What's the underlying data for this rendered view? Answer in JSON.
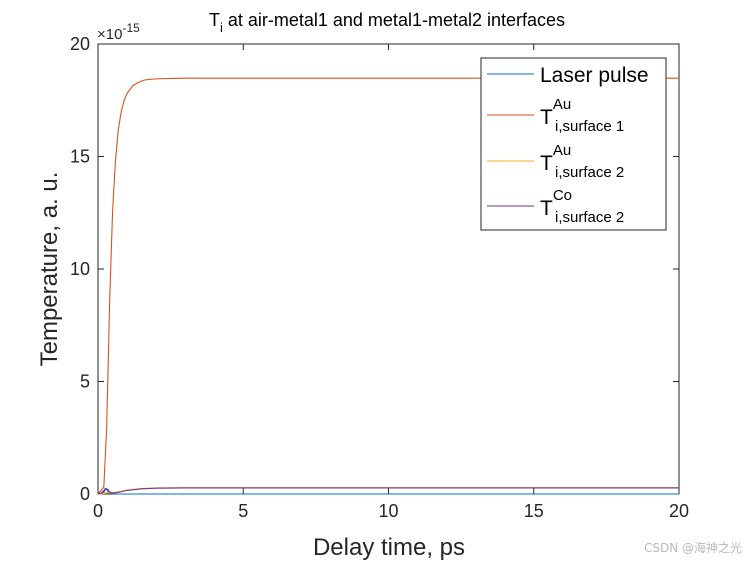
{
  "chart_data": {
    "type": "line",
    "title_main": "T",
    "title_sub": "i",
    "title_rest": " at air-metal1 and metal1-metal2 interfaces",
    "xlabel": "Delay time, ps",
    "ylabel": "Temperature, a. u.",
    "y_multiplier_base": "×10",
    "y_multiplier_exp": "-15",
    "xlim": [
      0,
      20
    ],
    "ylim": [
      0,
      20
    ],
    "xticks": [
      0,
      5,
      10,
      15,
      20
    ],
    "yticks": [
      0,
      5,
      10,
      15,
      20
    ],
    "grid": false,
    "legend_position": "top-right",
    "series": [
      {
        "name": "Laser pulse",
        "color": "#0072bd",
        "x": [
          0,
          0.1,
          0.2,
          0.25,
          0.3,
          0.35,
          0.4,
          0.5,
          0.6,
          20
        ],
        "y": [
          0,
          0.03,
          0.15,
          0.25,
          0.2,
          0.1,
          0.04,
          0.01,
          0,
          0
        ]
      },
      {
        "label_base": "T",
        "label_sup": "Au",
        "label_sub": "i,surface 1",
        "color": "#d95319",
        "x": [
          0,
          0.2,
          0.3,
          0.4,
          0.5,
          0.6,
          0.7,
          0.8,
          0.9,
          1.0,
          1.2,
          1.4,
          1.6,
          1.8,
          2.0,
          2.5,
          3.0,
          20
        ],
        "y": [
          0,
          0.3,
          3.0,
          8.5,
          12.5,
          14.8,
          16.2,
          17.0,
          17.5,
          17.8,
          18.15,
          18.3,
          18.4,
          18.43,
          18.45,
          18.47,
          18.48,
          18.48
        ]
      },
      {
        "label_base": "T",
        "label_sup": "Au",
        "label_sub": "i,surface 2",
        "color": "#edb120",
        "x": [
          0,
          0.2,
          0.3,
          0.4,
          0.6,
          0.8,
          1.0,
          1.5,
          2.0,
          3.0,
          20
        ],
        "y": [
          0,
          0.02,
          0.05,
          0.05,
          0.08,
          0.12,
          0.17,
          0.24,
          0.27,
          0.28,
          0.28
        ]
      },
      {
        "label_base": "T",
        "label_sup": "Co",
        "label_sub": "i,surface 2",
        "color": "#7e2f8e",
        "x": [
          0,
          0.2,
          0.25,
          0.3,
          0.35,
          0.4,
          0.5,
          0.6,
          0.8,
          1.0,
          1.5,
          2.0,
          3.0,
          20
        ],
        "y": [
          0,
          0.08,
          0.2,
          0.24,
          0.18,
          0.1,
          0.04,
          0.05,
          0.1,
          0.16,
          0.23,
          0.26,
          0.27,
          0.27
        ]
      }
    ]
  },
  "watermark": "CSDN @海神之光"
}
